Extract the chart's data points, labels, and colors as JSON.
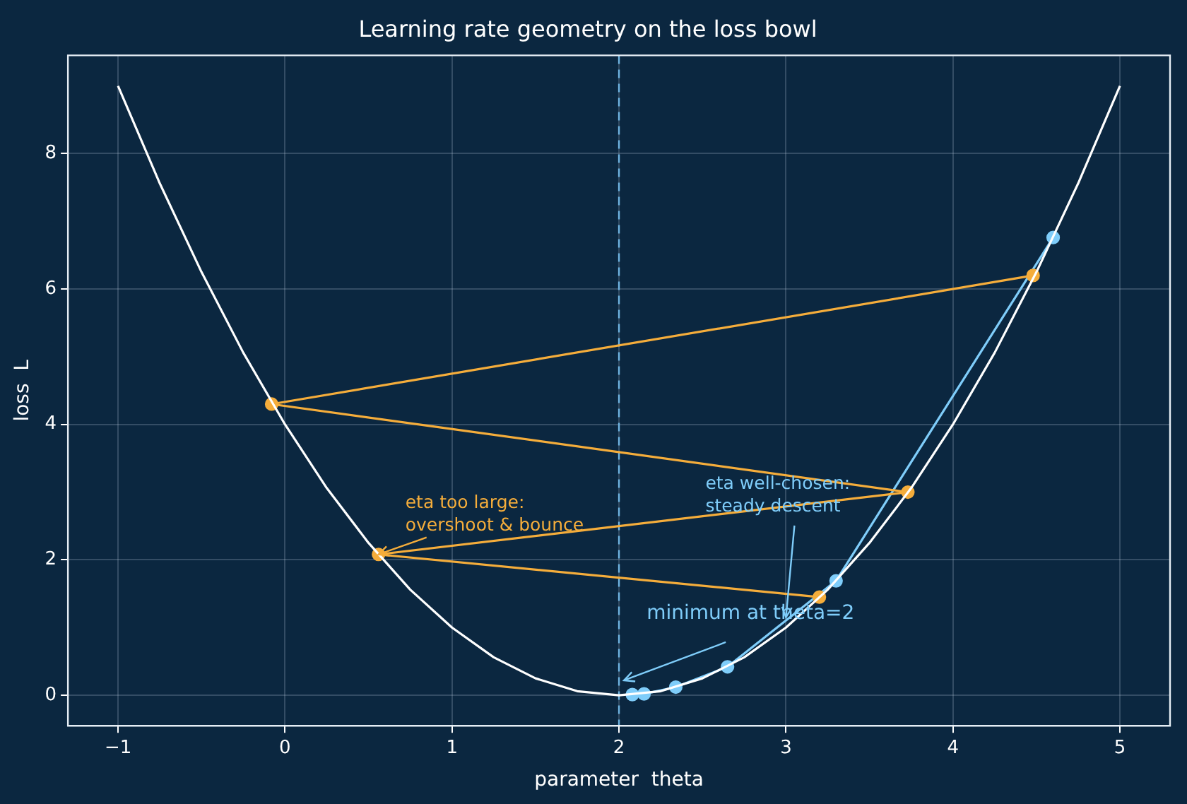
{
  "chart_data": {
    "type": "line",
    "title": "Learning rate geometry on the loss bowl",
    "xlabel": "parameter  theta",
    "ylabel": "loss  L",
    "xlim": [
      -1.3,
      5.3
    ],
    "ylim": [
      -0.45,
      9.45
    ],
    "xticks": [
      -1,
      0,
      1,
      2,
      3,
      4,
      5
    ],
    "yticks": [
      0,
      2,
      4,
      6,
      8
    ],
    "grid": true,
    "legend": false,
    "marker": "circle",
    "series": [
      {
        "color": "#ffffff",
        "marker": "none",
        "x": [
          -1,
          -0.75,
          -0.5,
          -0.25,
          0,
          0.25,
          0.5,
          0.75,
          1,
          1.25,
          1.5,
          1.75,
          2,
          2.25,
          2.5,
          2.75,
          3,
          3.25,
          3.5,
          3.75,
          4,
          4.25,
          4.5,
          4.75,
          5
        ],
        "values": [
          9,
          7.56,
          6.25,
          5.06,
          4,
          3.06,
          2.25,
          1.56,
          1,
          0.56,
          0.25,
          0.06,
          0,
          0.06,
          0.25,
          0.56,
          1,
          1.56,
          2.25,
          3.06,
          4,
          5.06,
          6.25,
          7.56,
          9
        ]
      },
      {
        "color": "#f5ad3b",
        "x": [
          4.48,
          -0.08,
          3.73,
          0.56,
          3.2
        ],
        "values": [
          6.2,
          4.3,
          3.0,
          2.08,
          1.45
        ]
      },
      {
        "color": "#7fcdfa",
        "x": [
          4.6,
          3.3,
          2.65,
          2.34,
          2.15,
          2.08
        ],
        "values": [
          6.76,
          1.69,
          0.42,
          0.12,
          0.02,
          0.01
        ]
      }
    ],
    "ref_lines": [
      {
        "axis": "x",
        "value": 2,
        "color": "#6fb3e0",
        "line_style": "dashed"
      }
    ],
    "annotations": [
      {
        "text": "eta too large:\novershoot & bounce",
        "x": 0.56,
        "y": 2.08
      },
      {
        "text": "eta well-chosen:\nsteady descent",
        "x": 3.0,
        "y": 1.15
      },
      {
        "text": "minimum at theta=2",
        "x": 2.03,
        "y": 0.22
      }
    ]
  }
}
